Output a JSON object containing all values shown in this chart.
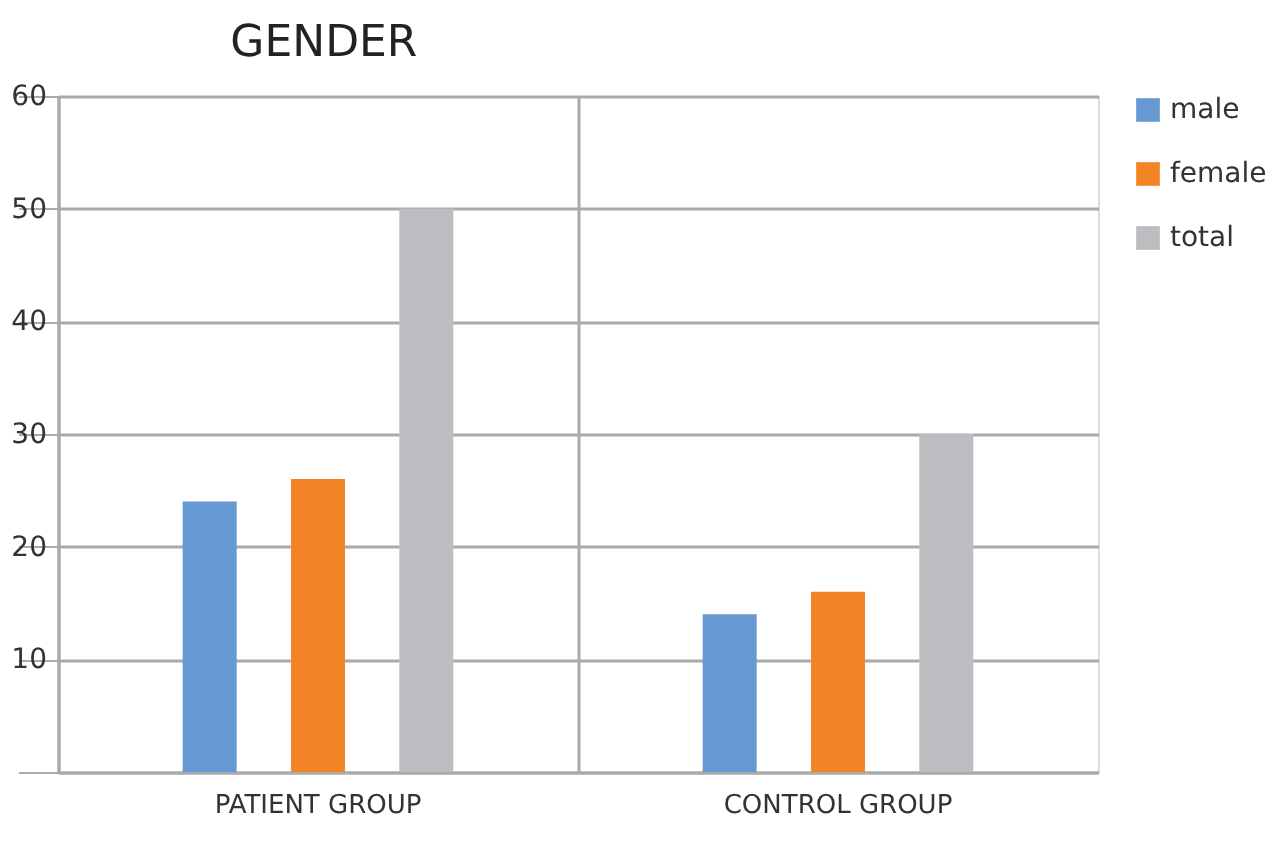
{
  "chart_data": {
    "type": "bar",
    "title": "GENDER",
    "categories": [
      "PATIENT GROUP",
      "CONTROL GROUP"
    ],
    "series": [
      {
        "name": "male",
        "color": "#6699d1",
        "values": [
          24,
          14
        ]
      },
      {
        "name": "female",
        "color": "#f38526",
        "values": [
          26,
          16
        ]
      },
      {
        "name": "total",
        "color": "#bcbdc0",
        "values": [
          50,
          30
        ]
      }
    ],
    "ylim": [
      0,
      60
    ],
    "yticks": [
      {
        "value": 0,
        "label": null
      },
      10,
      20,
      30,
      40,
      50,
      60
    ],
    "grid": true,
    "legend": "right"
  }
}
